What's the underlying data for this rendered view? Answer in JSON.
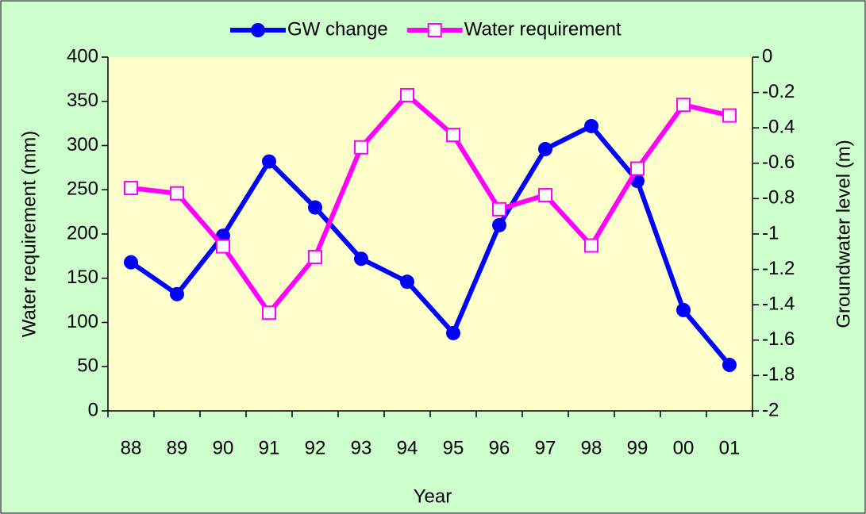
{
  "chart_data": {
    "type": "line",
    "x_label": "Year",
    "y_label": "Water requirement (mm)",
    "y2_label": "Groundwater level (m)",
    "categories": [
      "88",
      "89",
      "90",
      "91",
      "92",
      "93",
      "94",
      "95",
      "96",
      "97",
      "98",
      "99",
      "00",
      "01"
    ],
    "series": [
      {
        "name": "GW change",
        "color": "#0000ff",
        "marker": "circle",
        "axis": "y2",
        "values": [
          -1.16,
          -1.34,
          -1.01,
          -0.59,
          -0.85,
          -1.14,
          -1.27,
          -1.56,
          -0.95,
          -0.52,
          -0.39,
          -0.7,
          -1.43,
          -1.74
        ]
      },
      {
        "name": "Water requirement",
        "color": "#ff00ff",
        "marker": "square",
        "axis": "y",
        "values": [
          252,
          246,
          186,
          111,
          174,
          298,
          357,
          312,
          228,
          244,
          187,
          274,
          346,
          334
        ]
      }
    ],
    "ylim": [
      0,
      400
    ],
    "yticks": [
      0,
      50,
      100,
      150,
      200,
      250,
      300,
      350,
      400
    ],
    "y2lim": [
      -2,
      0
    ],
    "y2ticks": [
      0,
      -0.2,
      -0.4,
      -0.6,
      -0.8,
      -1,
      -1.2,
      -1.4,
      -1.6,
      -1.8,
      -2
    ],
    "legend": "top",
    "grid": false
  }
}
